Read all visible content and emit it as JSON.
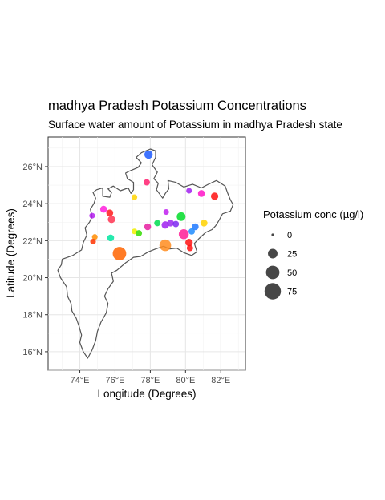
{
  "chart_data": {
    "type": "scatter",
    "title": "madhya Pradesh Potassium Concentrations",
    "subtitle": "Surface water amount of Potassium in madhya Pradesh state",
    "xlabel": "Longitude (Degrees)",
    "ylabel": "Latitude (Degrees)",
    "xlim": [
      72.2,
      83.4
    ],
    "ylim": [
      15.0,
      27.6
    ],
    "x_ticks": [
      74,
      76,
      78,
      80,
      82
    ],
    "x_tick_labels": [
      "74°E",
      "76°E",
      "78°E",
      "80°E",
      "82°E"
    ],
    "y_ticks": [
      16,
      18,
      20,
      22,
      24,
      26
    ],
    "y_tick_labels": [
      "16°N",
      "18°N",
      "20°N",
      "22°N",
      "24°N",
      "26°N"
    ],
    "grid": true,
    "legend": {
      "title": "Potassium conc (µg/l)",
      "placement": "right",
      "sizes": [
        0,
        25,
        50,
        75
      ],
      "labels": [
        "0",
        "25",
        "50",
        "75"
      ]
    },
    "boundary": [
      [
        74.45,
        15.65
      ],
      [
        74.2,
        16.0
      ],
      [
        74.0,
        16.5
      ],
      [
        74.1,
        16.9
      ],
      [
        73.95,
        17.4
      ],
      [
        73.8,
        17.8
      ],
      [
        73.55,
        18.2
      ],
      [
        73.5,
        18.6
      ],
      [
        73.3,
        19.0
      ],
      [
        73.25,
        19.5
      ],
      [
        72.9,
        20.0
      ],
      [
        72.75,
        20.4
      ],
      [
        72.95,
        20.7
      ],
      [
        73.0,
        21.0
      ],
      [
        73.6,
        21.2
      ],
      [
        74.1,
        21.5
      ],
      [
        74.2,
        21.9
      ],
      [
        74.4,
        22.3
      ],
      [
        74.3,
        22.7
      ],
      [
        74.55,
        23.0
      ],
      [
        74.7,
        23.3
      ],
      [
        74.6,
        23.7
      ],
      [
        74.8,
        24.0
      ],
      [
        74.9,
        24.3
      ],
      [
        74.75,
        24.6
      ],
      [
        74.95,
        24.75
      ],
      [
        75.3,
        24.85
      ],
      [
        75.3,
        24.4
      ],
      [
        75.7,
        24.35
      ],
      [
        75.8,
        24.6
      ],
      [
        75.6,
        24.8
      ],
      [
        75.9,
        24.95
      ],
      [
        76.3,
        24.7
      ],
      [
        76.75,
        24.85
      ],
      [
        76.9,
        24.55
      ],
      [
        77.05,
        24.75
      ],
      [
        77.05,
        25.15
      ],
      [
        76.7,
        25.35
      ],
      [
        76.6,
        25.65
      ],
      [
        76.8,
        25.75
      ],
      [
        77.3,
        25.95
      ],
      [
        77.5,
        26.2
      ],
      [
        77.2,
        26.5
      ],
      [
        77.5,
        26.75
      ],
      [
        78.0,
        26.95
      ],
      [
        78.3,
        26.85
      ],
      [
        78.3,
        26.5
      ],
      [
        78.1,
        26.1
      ],
      [
        78.4,
        25.7
      ],
      [
        78.2,
        25.35
      ],
      [
        78.45,
        25.1
      ],
      [
        78.35,
        24.75
      ],
      [
        78.7,
        24.3
      ],
      [
        78.85,
        24.55
      ],
      [
        79.05,
        24.8
      ],
      [
        79.0,
        25.25
      ],
      [
        79.45,
        25.15
      ],
      [
        79.9,
        24.9
      ],
      [
        80.4,
        25.05
      ],
      [
        80.9,
        24.85
      ],
      [
        81.3,
        25.05
      ],
      [
        81.75,
        25.25
      ],
      [
        82.25,
        24.95
      ],
      [
        82.4,
        24.55
      ],
      [
        82.55,
        24.2
      ],
      [
        82.7,
        23.95
      ],
      [
        82.55,
        23.6
      ],
      [
        82.1,
        23.45
      ],
      [
        81.9,
        23.1
      ],
      [
        81.7,
        22.8
      ],
      [
        81.5,
        22.6
      ],
      [
        81.15,
        22.45
      ],
      [
        80.75,
        22.1
      ],
      [
        80.5,
        21.85
      ],
      [
        80.65,
        21.4
      ],
      [
        80.35,
        21.2
      ],
      [
        79.9,
        21.35
      ],
      [
        79.5,
        21.6
      ],
      [
        79.1,
        21.55
      ],
      [
        78.75,
        21.7
      ],
      [
        78.3,
        21.55
      ],
      [
        77.9,
        21.4
      ],
      [
        77.45,
        21.15
      ],
      [
        77.05,
        21.1
      ],
      [
        76.6,
        20.8
      ],
      [
        76.1,
        20.4
      ],
      [
        75.8,
        20.25
      ],
      [
        75.9,
        19.8
      ],
      [
        75.6,
        19.4
      ],
      [
        75.4,
        19.0
      ],
      [
        75.6,
        18.6
      ],
      [
        75.5,
        18.1
      ],
      [
        75.2,
        17.6
      ],
      [
        75.0,
        17.1
      ],
      [
        74.9,
        16.6
      ],
      [
        74.7,
        16.1
      ],
      [
        74.45,
        15.65
      ]
    ],
    "points": [
      {
        "lon": 77.9,
        "lat": 26.65,
        "conc": 18,
        "color": "#1e5cff"
      },
      {
        "lon": 77.8,
        "lat": 25.15,
        "conc": 10,
        "color": "#ff1e6e"
      },
      {
        "lon": 80.2,
        "lat": 24.7,
        "conc": 8,
        "color": "#a020f0"
      },
      {
        "lon": 80.9,
        "lat": 24.55,
        "conc": 12,
        "color": "#ff14c8"
      },
      {
        "lon": 81.65,
        "lat": 24.4,
        "conc": 14,
        "color": "#ff1010"
      },
      {
        "lon": 77.1,
        "lat": 24.35,
        "conc": 8,
        "color": "#ffd400"
      },
      {
        "lon": 75.35,
        "lat": 23.7,
        "conc": 12,
        "color": "#ff1edc"
      },
      {
        "lon": 75.7,
        "lat": 23.5,
        "conc": 12,
        "color": "#ff1a1a"
      },
      {
        "lon": 74.7,
        "lat": 23.35,
        "conc": 8,
        "color": "#b41ef0"
      },
      {
        "lon": 75.8,
        "lat": 23.15,
        "conc": 14,
        "color": "#ff3250"
      },
      {
        "lon": 78.9,
        "lat": 23.55,
        "conc": 8,
        "color": "#c01ef0"
      },
      {
        "lon": 79.75,
        "lat": 23.3,
        "conc": 20,
        "color": "#00dc28"
      },
      {
        "lon": 81.05,
        "lat": 22.95,
        "conc": 12,
        "color": "#ffd200"
      },
      {
        "lon": 78.4,
        "lat": 22.95,
        "conc": 10,
        "color": "#00dc50"
      },
      {
        "lon": 78.85,
        "lat": 22.85,
        "conc": 14,
        "color": "#a020f0"
      },
      {
        "lon": 79.15,
        "lat": 22.95,
        "conc": 12,
        "color": "#9b28f0"
      },
      {
        "lon": 79.45,
        "lat": 22.9,
        "conc": 10,
        "color": "#7d28f0"
      },
      {
        "lon": 77.85,
        "lat": 22.75,
        "conc": 12,
        "color": "#e61ea0"
      },
      {
        "lon": 80.55,
        "lat": 22.75,
        "conc": 12,
        "color": "#1e78ff"
      },
      {
        "lon": 80.35,
        "lat": 22.5,
        "conc": 10,
        "color": "#1e8cff"
      },
      {
        "lon": 77.1,
        "lat": 22.5,
        "conc": 8,
        "color": "#f0f000"
      },
      {
        "lon": 77.35,
        "lat": 22.4,
        "conc": 10,
        "color": "#32dc00"
      },
      {
        "lon": 79.9,
        "lat": 22.35,
        "conc": 26,
        "color": "#ff1e96"
      },
      {
        "lon": 74.85,
        "lat": 22.2,
        "conc": 8,
        "color": "#ff8c00"
      },
      {
        "lon": 75.75,
        "lat": 22.15,
        "conc": 12,
        "color": "#00e6a0"
      },
      {
        "lon": 74.75,
        "lat": 21.95,
        "conc": 8,
        "color": "#ff3200"
      },
      {
        "lon": 80.2,
        "lat": 21.9,
        "conc": 14,
        "color": "#ff1010"
      },
      {
        "lon": 78.85,
        "lat": 21.75,
        "conc": 36,
        "color": "#ff8c1e"
      },
      {
        "lon": 80.25,
        "lat": 21.6,
        "conc": 10,
        "color": "#ff1010"
      },
      {
        "lon": 76.25,
        "lat": 21.3,
        "conc": 48,
        "color": "#ff6400"
      }
    ]
  }
}
